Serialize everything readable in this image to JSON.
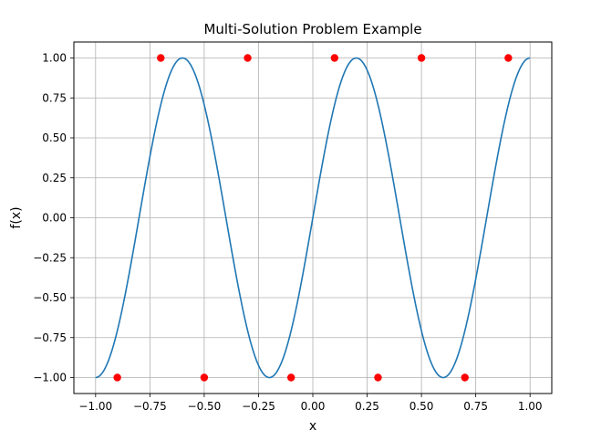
{
  "chart_data": {
    "type": "line",
    "title": "Multi-Solution Problem Example",
    "xlabel": "x",
    "ylabel": "f(x)",
    "xlim": [
      -1.1,
      1.1
    ],
    "ylim": [
      -1.1,
      1.1
    ],
    "x_ticks": [
      -1.0,
      -0.75,
      -0.5,
      -0.25,
      0.0,
      0.25,
      0.5,
      0.75,
      1.0
    ],
    "x_tick_labels": [
      "−1.00",
      "−0.75",
      "−0.50",
      "−0.25",
      "0.00",
      "0.25",
      "0.50",
      "0.75",
      "1.00"
    ],
    "y_ticks": [
      -1.0,
      -0.75,
      -0.5,
      -0.25,
      0.0,
      0.25,
      0.5,
      0.75,
      1.0
    ],
    "y_tick_labels": [
      "−1.00",
      "−0.75",
      "−0.50",
      "−0.25",
      "0.00",
      "0.25",
      "0.50",
      "0.75",
      "1.00"
    ],
    "grid": true,
    "curve": {
      "function": "sin(2.5πx)",
      "x_range": [
        -1.0,
        1.0
      ],
      "color": "#1f77b4"
    },
    "scatter": {
      "color": "#ff0000",
      "points": [
        {
          "x": -0.9,
          "y": -1.0
        },
        {
          "x": -0.7,
          "y": 1.0
        },
        {
          "x": -0.5,
          "y": -1.0
        },
        {
          "x": -0.3,
          "y": 1.0
        },
        {
          "x": -0.1,
          "y": -1.0
        },
        {
          "x": 0.1,
          "y": 1.0
        },
        {
          "x": 0.3,
          "y": -1.0
        },
        {
          "x": 0.5,
          "y": 1.0
        },
        {
          "x": 0.7,
          "y": -1.0
        },
        {
          "x": 0.9,
          "y": 1.0
        }
      ]
    }
  }
}
